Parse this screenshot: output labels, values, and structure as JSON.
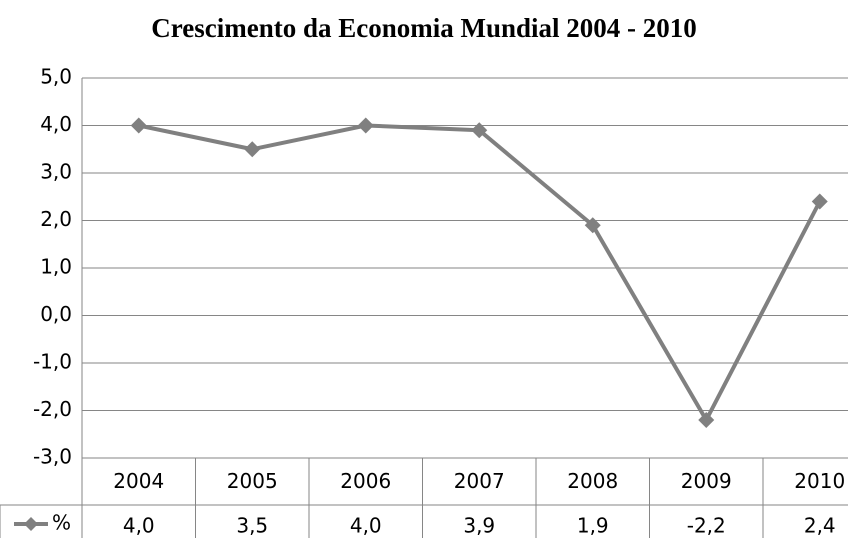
{
  "chart_data": {
    "type": "line",
    "title": "Crescimento da Economia Mundial 2004 - 2010",
    "categories": [
      "2004",
      "2005",
      "2006",
      "2007",
      "2008",
      "2009",
      "2010"
    ],
    "series": [
      {
        "name": "%",
        "color": "#808080",
        "values": [
          4.0,
          3.5,
          4.0,
          3.9,
          1.9,
          -2.2,
          2.4
        ],
        "value_labels": [
          "4,0",
          "3,5",
          "4,0",
          "3,9",
          "1,9",
          "-2,2",
          "2,4"
        ]
      }
    ],
    "ylim": [
      -3,
      5
    ],
    "yticks": [
      {
        "value": -3,
        "label": "-3,0"
      },
      {
        "value": -2,
        "label": "-2,0"
      },
      {
        "value": -1,
        "label": "-1,0"
      },
      {
        "value": 0,
        "label": "0,0"
      },
      {
        "value": 1,
        "label": "1,0"
      },
      {
        "value": 2,
        "label": "2,0"
      },
      {
        "value": 3,
        "label": "3,0"
      },
      {
        "value": 4,
        "label": "4,0"
      },
      {
        "value": 5,
        "label": "5,0"
      }
    ],
    "grid": true
  }
}
